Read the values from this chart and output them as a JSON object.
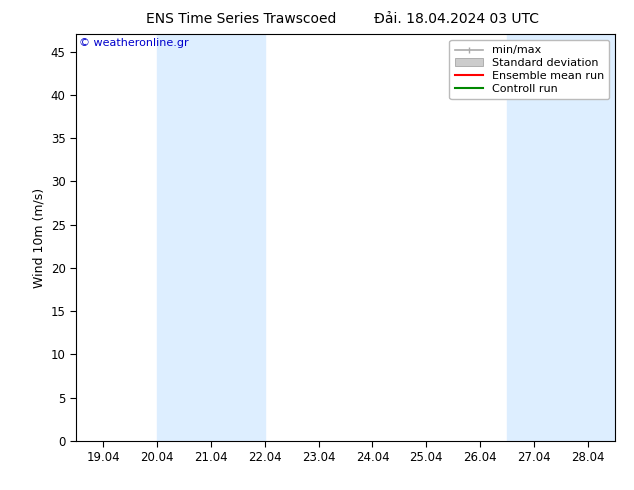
{
  "title_left": "ENS Time Series Trawscoed",
  "title_right": "Đải. 18.04.2024 03 UTC",
  "ylabel": "Wind 10m (m/s)",
  "watermark": "© weatheronline.gr",
  "watermark_color": "#0000cc",
  "ylim": [
    0,
    47
  ],
  "yticks": [
    0,
    5,
    10,
    15,
    20,
    25,
    30,
    35,
    40,
    45
  ],
  "xtick_labels": [
    "19.04",
    "20.04",
    "21.04",
    "22.04",
    "23.04",
    "24.04",
    "25.04",
    "26.04",
    "27.04",
    "28.04"
  ],
  "xtick_positions": [
    0,
    1,
    2,
    3,
    4,
    5,
    6,
    7,
    8,
    9
  ],
  "xlim_start": -0.5,
  "xlim_end": 9.5,
  "shaded_regions": [
    {
      "xmin": 1,
      "xmax": 3,
      "color": "#ddeeff"
    },
    {
      "xmin": 7.5,
      "xmax": 9.5,
      "color": "#ddeeff"
    }
  ],
  "legend_entries": [
    {
      "label": "min/max",
      "color": "#aaaaaa",
      "type": "line_with_cap"
    },
    {
      "label": "Standard deviation",
      "color": "#cccccc",
      "type": "bar"
    },
    {
      "label": "Ensemble mean run",
      "color": "#ff0000",
      "type": "line"
    },
    {
      "label": "Controll run",
      "color": "#008800",
      "type": "line"
    }
  ],
  "bg_color": "#ffffff",
  "plot_bg_color": "#ffffff",
  "tick_label_fontsize": 8.5,
  "title_fontsize": 10,
  "ylabel_fontsize": 9,
  "legend_fontsize": 8
}
